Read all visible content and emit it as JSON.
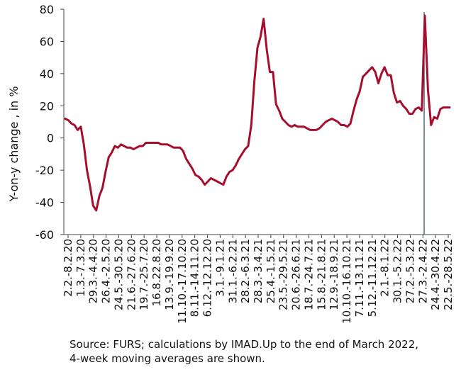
{
  "chart_data": {
    "type": "line",
    "ylabel": "Y-on-y change , in %",
    "ylim": [
      -60,
      80
    ],
    "y_ticks": [
      80,
      60,
      40,
      20,
      0,
      -20,
      -40,
      -60
    ],
    "grid": false,
    "x_tick_labels": [
      "2.2.-8.2.20",
      "1.3.-7.3.20",
      "29.3.-4.4.20",
      "26.4.-2.5.20",
      "24.5.-30.5.20",
      "21.6.-27.6.20",
      "19.7.-25.7.20",
      "16.8.22.8.20",
      "13.9.-19.9.20",
      "11.10.-17.10.20",
      "8.11.-14.11.20",
      "6.12.-12.12.20",
      "3.1.-9.1.21",
      "31.1.-6.2.21",
      "28.2.-6.3.21",
      "28.3.-3.4.21",
      "25.4.-1.5.21",
      "23.5.-29.5.21",
      "20.6.-26.6.21",
      "18.7.-24.7.21",
      "15.8.-21.8.21",
      "12.9.-18.9.21",
      "10.10.-16.10.21",
      "7.11.-13.11.21",
      "5.12.-11.12.21",
      "2.1.-8.1.22",
      "30.1.-5.2.22",
      "27.2.-5.3.22",
      "27.3.-2.4.22",
      "24.4.-30.4.22",
      "22.5.-28.5.22"
    ],
    "vertical_marker_after": "27.3.-2.4.22",
    "series": [
      {
        "color": "#a50f2d",
        "values": [
          12,
          11,
          9,
          8,
          5,
          7,
          -4,
          -20,
          -30,
          -42,
          -45,
          -36,
          -31,
          -21,
          -12,
          -9,
          -5,
          -6,
          -4,
          -5,
          -6,
          -6,
          -7,
          -6,
          -5,
          -5,
          -3,
          -3,
          -3,
          -3,
          -3,
          -4,
          -4,
          -4,
          -5,
          -6,
          -6,
          -6,
          -8,
          -13,
          -16,
          -19,
          -23,
          -24,
          -26,
          -29,
          -27,
          -25,
          -26,
          -27,
          -28,
          -29,
          -24,
          -21,
          -20,
          -17,
          -13,
          -10,
          -7,
          -5,
          8,
          35,
          56,
          63,
          74,
          55,
          41,
          41,
          21,
          17,
          12,
          10,
          8,
          7,
          8,
          7,
          7,
          7,
          6,
          5,
          5,
          5,
          6,
          8,
          10,
          11,
          12,
          11,
          10,
          8,
          8,
          7,
          9,
          17,
          24,
          29,
          38,
          40,
          42,
          44,
          41,
          34,
          40,
          44,
          39,
          39,
          28,
          22,
          23,
          20,
          18,
          15,
          15,
          18,
          19,
          17,
          76,
          30,
          8,
          13,
          12,
          18,
          19,
          19,
          19
        ]
      }
    ]
  },
  "note": {
    "line1": "Source: FURS; calculations by IMAD.Up to the end of March 2022,",
    "line2": "4-week moving averages are shown."
  }
}
